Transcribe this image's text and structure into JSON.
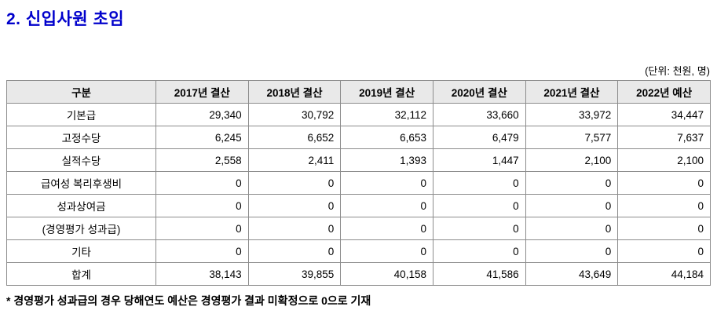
{
  "page": {
    "title": "2. 신입사원 초임",
    "unit_note": "(단위: 천원, 명)",
    "footnote": "* 경영평가 성과급의 경우 당해연도 예산은 경영평가 결과 미확정으로 0으로 기재"
  },
  "table": {
    "columns": [
      "구분",
      "2017년 결산",
      "2018년 결산",
      "2019년 결산",
      "2020년 결산",
      "2021년 결산",
      "2022년 예산"
    ],
    "rows": [
      {
        "label": "기본급",
        "values": [
          "29,340",
          "30,792",
          "32,112",
          "33,660",
          "33,972",
          "34,447"
        ]
      },
      {
        "label": "고정수당",
        "values": [
          "6,245",
          "6,652",
          "6,653",
          "6,479",
          "7,577",
          "7,637"
        ]
      },
      {
        "label": "실적수당",
        "values": [
          "2,558",
          "2,411",
          "1,393",
          "1,447",
          "2,100",
          "2,100"
        ]
      },
      {
        "label": "급여성 복리후생비",
        "values": [
          "0",
          "0",
          "0",
          "0",
          "0",
          "0"
        ]
      },
      {
        "label": "성과상여금",
        "values": [
          "0",
          "0",
          "0",
          "0",
          "0",
          "0"
        ]
      },
      {
        "label": "(경영평가 성과급)",
        "values": [
          "0",
          "0",
          "0",
          "0",
          "0",
          "0"
        ]
      },
      {
        "label": "기타",
        "values": [
          "0",
          "0",
          "0",
          "0",
          "0",
          "0"
        ]
      },
      {
        "label": "합계",
        "values": [
          "38,143",
          "39,855",
          "40,158",
          "41,586",
          "43,649",
          "44,184"
        ]
      }
    ]
  }
}
